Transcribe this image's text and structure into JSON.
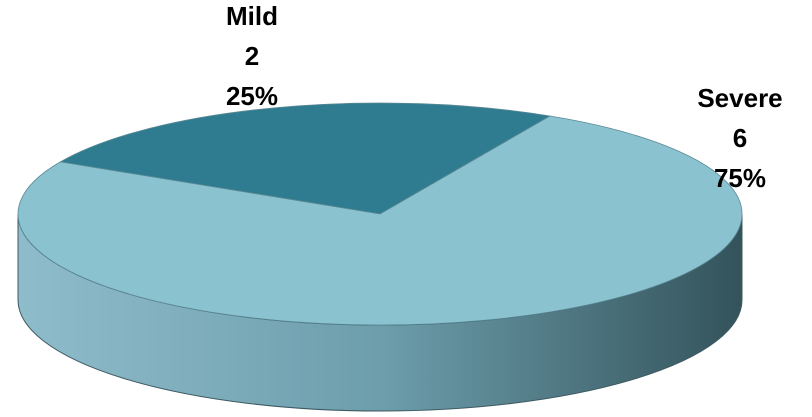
{
  "chart_data": {
    "type": "pie",
    "categories": [
      "Mild",
      "Severe"
    ],
    "values": [
      2,
      6
    ],
    "percent_labels": [
      "25%",
      "75%"
    ],
    "colors": [
      "#2f7c91",
      "#8bc2d0"
    ]
  }
}
